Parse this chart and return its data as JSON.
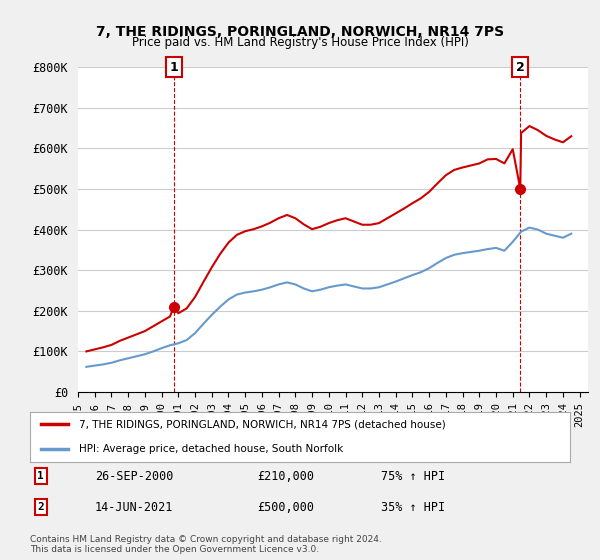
{
  "title": "7, THE RIDINGS, PORINGLAND, NORWICH, NR14 7PS",
  "subtitle": "Price paid vs. HM Land Registry's House Price Index (HPI)",
  "ylabel_ticks": [
    "£0",
    "£100K",
    "£200K",
    "£300K",
    "£400K",
    "£500K",
    "£600K",
    "£700K",
    "£800K"
  ],
  "ytick_values": [
    0,
    100000,
    200000,
    300000,
    400000,
    500000,
    600000,
    700000,
    800000
  ],
  "ylim": [
    0,
    800000
  ],
  "xlim_start": 1995.0,
  "xlim_end": 2025.5,
  "sale1_x": 2000.74,
  "sale1_y": 210000,
  "sale2_x": 2021.45,
  "sale2_y": 500000,
  "sale1_label": "26-SEP-2000",
  "sale1_price": "£210,000",
  "sale1_hpi": "75% ↑ HPI",
  "sale2_label": "14-JUN-2021",
  "sale2_price": "£500,000",
  "sale2_hpi": "35% ↑ HPI",
  "red_line_color": "#cc0000",
  "blue_line_color": "#6699cc",
  "background_color": "#f0f0f0",
  "plot_background": "#ffffff",
  "grid_color": "#cccccc",
  "dashed_line_color": "#cc0000",
  "legend_label_red": "7, THE RIDINGS, PORINGLAND, NORWICH, NR14 7PS (detached house)",
  "legend_label_blue": "HPI: Average price, detached house, South Norfolk",
  "footnote": "Contains HM Land Registry data © Crown copyright and database right 2024.\nThis data is licensed under the Open Government Licence v3.0.",
  "hpi_data": {
    "years": [
      1995.5,
      1996.0,
      1996.5,
      1997.0,
      1997.5,
      1998.0,
      1998.5,
      1999.0,
      1999.5,
      2000.0,
      2000.5,
      2001.0,
      2001.5,
      2002.0,
      2002.5,
      2003.0,
      2003.5,
      2004.0,
      2004.5,
      2005.0,
      2005.5,
      2006.0,
      2006.5,
      2007.0,
      2007.5,
      2008.0,
      2008.5,
      2009.0,
      2009.5,
      2010.0,
      2010.5,
      2011.0,
      2011.5,
      2012.0,
      2012.5,
      2013.0,
      2013.5,
      2014.0,
      2014.5,
      2015.0,
      2015.5,
      2016.0,
      2016.5,
      2017.0,
      2017.5,
      2018.0,
      2018.5,
      2019.0,
      2019.5,
      2020.0,
      2020.5,
      2021.0,
      2021.5,
      2022.0,
      2022.5,
      2023.0,
      2023.5,
      2024.0,
      2024.5
    ],
    "values": [
      62000,
      65000,
      68000,
      72000,
      78000,
      83000,
      88000,
      93000,
      100000,
      108000,
      115000,
      120000,
      128000,
      145000,
      168000,
      190000,
      210000,
      228000,
      240000,
      245000,
      248000,
      252000,
      258000,
      265000,
      270000,
      265000,
      255000,
      248000,
      252000,
      258000,
      262000,
      265000,
      260000,
      255000,
      255000,
      258000,
      265000,
      272000,
      280000,
      288000,
      295000,
      305000,
      318000,
      330000,
      338000,
      342000,
      345000,
      348000,
      352000,
      355000,
      348000,
      370000,
      395000,
      405000,
      400000,
      390000,
      385000,
      380000,
      390000
    ]
  },
  "red_data": {
    "years": [
      1995.5,
      1996.0,
      1996.5,
      1997.0,
      1997.5,
      1998.0,
      1998.5,
      1999.0,
      1999.5,
      2000.0,
      2000.5,
      2000.74,
      2001.0,
      2001.5,
      2002.0,
      2002.5,
      2003.0,
      2003.5,
      2004.0,
      2004.5,
      2005.0,
      2005.5,
      2006.0,
      2006.5,
      2007.0,
      2007.5,
      2008.0,
      2008.5,
      2009.0,
      2009.5,
      2010.0,
      2010.5,
      2011.0,
      2011.5,
      2012.0,
      2012.5,
      2013.0,
      2013.5,
      2014.0,
      2014.5,
      2015.0,
      2015.5,
      2016.0,
      2016.5,
      2017.0,
      2017.5,
      2018.0,
      2018.5,
      2019.0,
      2019.5,
      2020.0,
      2020.5,
      2021.0,
      2021.45,
      2021.5,
      2022.0,
      2022.5,
      2023.0,
      2023.5,
      2024.0,
      2024.5
    ],
    "values": [
      100000,
      105000,
      110000,
      116000,
      126000,
      134000,
      142000,
      150000,
      162000,
      174000,
      186000,
      210000,
      194000,
      206000,
      234000,
      271000,
      307000,
      340000,
      368000,
      387000,
      396000,
      401000,
      408000,
      417000,
      428000,
      436000,
      428000,
      413000,
      401000,
      407000,
      416000,
      423000,
      428000,
      420000,
      412000,
      412000,
      416000,
      428000,
      440000,
      452000,
      465000,
      477000,
      493000,
      514000,
      534000,
      547000,
      553000,
      558000,
      563000,
      573000,
      574000,
      563000,
      598000,
      500000,
      638000,
      655000,
      645000,
      631000,
      622000,
      615000,
      630000
    ]
  }
}
